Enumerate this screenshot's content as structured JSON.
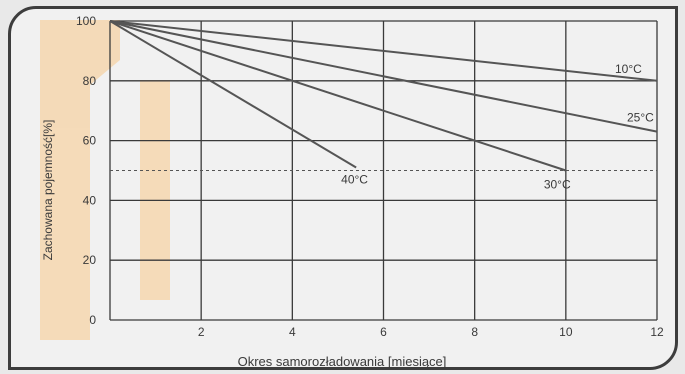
{
  "chart_data": {
    "type": "line",
    "title": "",
    "xlabel": "Okres samorozładowania [miesiące]",
    "ylabel": "Zachowana pojemność[%]",
    "xlim": [
      0,
      12
    ],
    "ylim": [
      0,
      100
    ],
    "x_ticks": [
      "2",
      "4",
      "6",
      "8",
      "10",
      "12"
    ],
    "y_ticks": [
      "0",
      "20",
      "40",
      "60",
      "80",
      "100"
    ],
    "grid": true,
    "reference_line": {
      "y": 50,
      "style": "dashed"
    },
    "series": [
      {
        "name": "10°C",
        "x": [
          0,
          12
        ],
        "y": [
          100,
          80
        ]
      },
      {
        "name": "25°C",
        "x": [
          0,
          12
        ],
        "y": [
          100,
          63
        ]
      },
      {
        "name": "30°C",
        "x": [
          0,
          10
        ],
        "y": [
          100,
          50
        ]
      },
      {
        "name": "40°C",
        "x": [
          0,
          5.4
        ],
        "y": [
          100,
          51
        ]
      }
    ],
    "colors": {
      "line": "#555555",
      "grid": "#3a3a3a",
      "watermark": "#f7c98a"
    }
  }
}
